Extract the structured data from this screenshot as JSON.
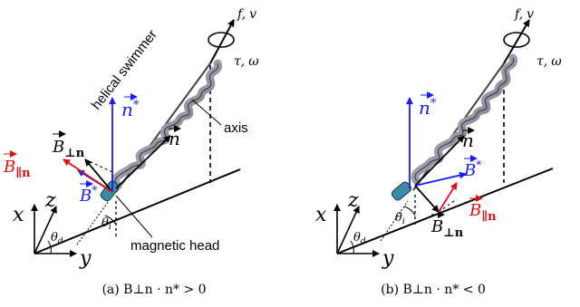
{
  "colors": {
    "black": "#000000",
    "blue": "#1a1aff",
    "red": "#e01010",
    "swimmer_fill": "#a8a8b8",
    "swimmer_dark": "#555566",
    "head": "#3a8aa8"
  },
  "labels": {
    "helical_swimmer": "helical swimmer",
    "axis": "axis",
    "magnetic_head": "magnetic head",
    "f": "f",
    "v": "v",
    "tau": "τ",
    "omega": "ω",
    "comma": ",",
    "x": "x",
    "y": "y",
    "z": "z",
    "theta": "θ",
    "sub_d": "d",
    "sub_i": "i",
    "n": "n",
    "star": "*",
    "B": "B",
    "perp_n": "⊥n",
    "par_n": "∥n"
  },
  "captions": {
    "a": "(a) B⊥n · n* > 0",
    "b": "(b) B⊥n · n* < 0"
  }
}
